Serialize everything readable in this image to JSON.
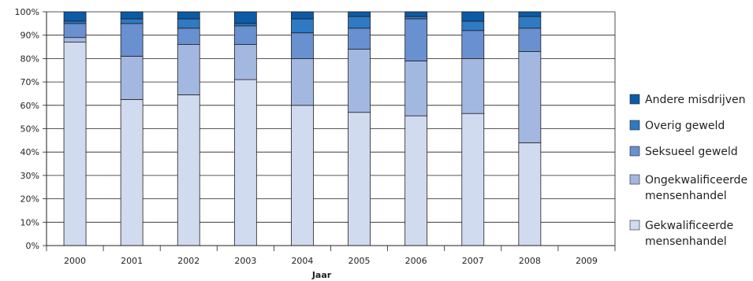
{
  "chart_data": {
    "type": "bar",
    "stacked": true,
    "xlabel": "Jaar",
    "ylabel": "",
    "ylim": [
      0,
      100
    ],
    "y_ticks": [
      "0%",
      "10%",
      "20%",
      "30%",
      "40%",
      "50%",
      "60%",
      "70%",
      "80%",
      "90%",
      "100%"
    ],
    "grid": true,
    "legend_position": "right",
    "categories": [
      "2000",
      "2001",
      "2002",
      "2003",
      "2004",
      "2005",
      "2006",
      "2007",
      "2008",
      "2009"
    ],
    "series": [
      {
        "name": "Gekwalificeerde mensenhandel",
        "legend_lines": [
          "Gekwalificeerde",
          "mensenhandel"
        ],
        "color": "#d0dbef",
        "values": [
          87,
          62.5,
          64.5,
          71,
          60,
          57,
          55.5,
          56.5,
          44,
          0
        ]
      },
      {
        "name": "Ongekwalificeerde mensenhandel",
        "legend_lines": [
          "Ongekwalificeerde",
          "mensenhandel"
        ],
        "color": "#a3b8e0",
        "values": [
          2,
          18.5,
          21.5,
          15,
          20,
          27,
          23.5,
          23.5,
          39,
          0
        ]
      },
      {
        "name": "Seksueel geweld",
        "legend_lines": [
          "Seksueel geweld"
        ],
        "color": "#6990cf",
        "values": [
          6,
          14,
          7,
          8,
          11,
          9,
          18,
          12,
          10,
          0
        ]
      },
      {
        "name": "Overig geweld",
        "legend_lines": [
          "Overig geweld"
        ],
        "color": "#2e7ac3",
        "values": [
          1,
          2,
          4,
          1,
          6,
          5,
          1,
          4,
          5,
          0
        ]
      },
      {
        "name": "Andere misdrijven",
        "legend_lines": [
          "Andere misdrijven"
        ],
        "color": "#0b5ba7",
        "values": [
          4,
          3,
          3,
          5,
          3,
          2,
          2,
          4,
          2,
          0
        ]
      }
    ]
  }
}
